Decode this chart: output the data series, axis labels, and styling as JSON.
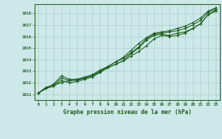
{
  "title": "Graphe pression niveau de la mer (hPa)",
  "hours": [
    0,
    1,
    2,
    3,
    4,
    5,
    6,
    7,
    8,
    9,
    10,
    11,
    12,
    13,
    14,
    15,
    16,
    17,
    18,
    19,
    20,
    21,
    22,
    23
  ],
  "ylim": [
    1010.5,
    1018.8
  ],
  "xlim": [
    -0.5,
    23.5
  ],
  "yticks": [
    1011,
    1012,
    1013,
    1014,
    1015,
    1016,
    1017,
    1018
  ],
  "bg_color": "#cce8e8",
  "grid_color": "#aacccc",
  "line_color": "#1a5c1a",
  "line1": [
    1011.1,
    1011.6,
    1011.8,
    1012.0,
    1012.2,
    1012.3,
    1012.4,
    1012.6,
    1012.9,
    1013.3,
    1013.6,
    1013.9,
    1014.3,
    1014.7,
    1015.2,
    1015.8,
    1016.1,
    1016.0,
    1016.1,
    1016.3,
    1016.7,
    1017.1,
    1017.9,
    1018.3
  ],
  "line2": [
    1011.1,
    1011.5,
    1011.7,
    1012.2,
    1012.0,
    1012.1,
    1012.3,
    1012.5,
    1012.9,
    1013.3,
    1013.6,
    1013.9,
    1014.5,
    1015.0,
    1015.7,
    1016.1,
    1016.2,
    1016.1,
    1016.3,
    1016.4,
    1016.7,
    1017.1,
    1017.9,
    1018.2
  ],
  "line3": [
    1011.1,
    1011.6,
    1011.8,
    1012.4,
    1012.2,
    1012.2,
    1012.4,
    1012.6,
    1013.0,
    1013.4,
    1013.8,
    1014.1,
    1014.6,
    1015.1,
    1015.8,
    1016.2,
    1016.3,
    1016.4,
    1016.5,
    1016.7,
    1017.0,
    1017.4,
    1018.1,
    1018.4
  ],
  "line4": [
    1011.1,
    1011.5,
    1011.9,
    1012.6,
    1012.3,
    1012.3,
    1012.5,
    1012.7,
    1013.1,
    1013.4,
    1013.8,
    1014.2,
    1014.8,
    1015.4,
    1015.9,
    1016.3,
    1016.4,
    1016.5,
    1016.7,
    1016.9,
    1017.2,
    1017.6,
    1018.2,
    1018.5
  ]
}
